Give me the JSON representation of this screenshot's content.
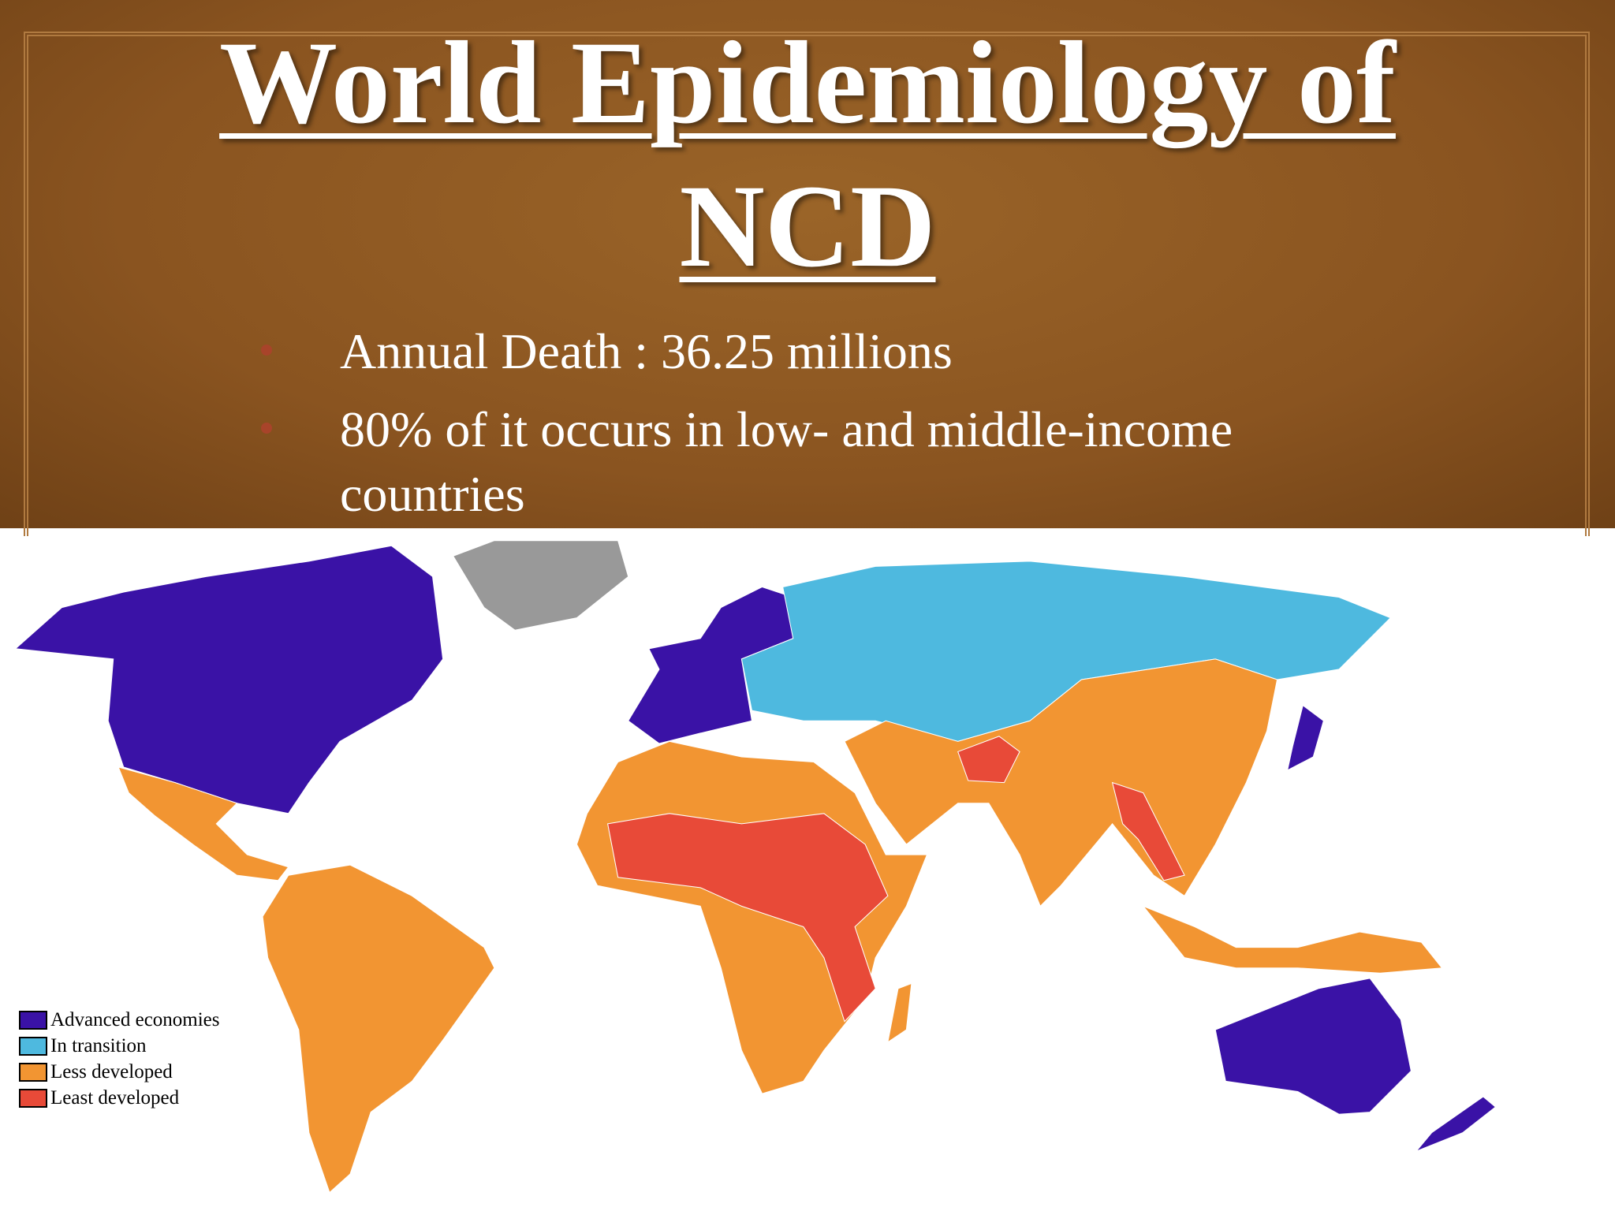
{
  "header": {
    "title_lines": [
      "World Epidemiology of",
      "NCD"
    ]
  },
  "bullets": [
    "Annual Death : 36.25 millions",
    "80% of it occurs in low- and middle-income countries"
  ],
  "legend": [
    {
      "label": "Advanced economies",
      "color": "#3a12a6"
    },
    {
      "label": "In transition",
      "color": "#4eb9df"
    },
    {
      "label": "Less developed",
      "color": "#f29532"
    },
    {
      "label": "Least developed",
      "color": "#e84a38"
    }
  ]
}
